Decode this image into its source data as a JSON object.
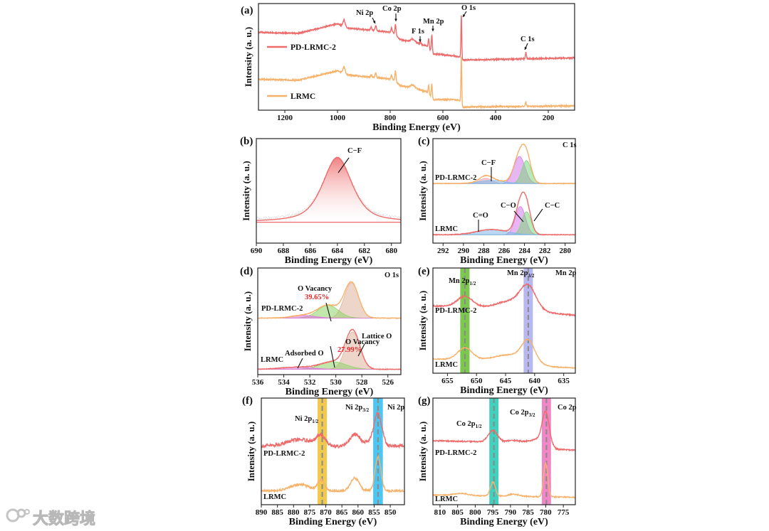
{
  "watermark": {
    "text": "大数跨境"
  },
  "chart_data": [
    {
      "id": "a",
      "tag": "(a)",
      "type": "line",
      "xlabel": "Binding Energy (eV)",
      "ylabel": "Intensity (a. u.)",
      "xlim": [
        1300,
        100
      ],
      "ylim": [
        0,
        1
      ],
      "xticks": [
        1200,
        1000,
        800,
        600,
        400,
        200
      ],
      "series": [
        {
          "name": "PD-LRMC-2",
          "color": "#ee6b6b",
          "noise": 0.006,
          "baseline": [
            [
              1300,
              0.73
            ],
            [
              1150,
              0.72
            ],
            [
              1000,
              0.81
            ],
            [
              960,
              0.77
            ],
            [
              790,
              0.73
            ],
            [
              760,
              0.66
            ],
            [
              700,
              0.63
            ],
            [
              660,
              0.6
            ],
            [
              638,
              0.53
            ],
            [
              560,
              0.51
            ],
            [
              535,
              0.5
            ],
            [
              528,
              0.47
            ],
            [
              100,
              0.49
            ]
          ],
          "peaks": [
            [
              975,
              0.06,
              4
            ],
            [
              855,
              0.05,
              2.5
            ],
            [
              872,
              0.03,
              2.5
            ],
            [
              795,
              0.04,
              2
            ],
            [
              780,
              0.1,
              2
            ],
            [
              715,
              0.03,
              8
            ],
            [
              685,
              0.02,
              2
            ],
            [
              654,
              0.09,
              2
            ],
            [
              642,
              0.16,
              2
            ],
            [
              530,
              0.42,
              1.6
            ],
            [
              285,
              0.06,
              2
            ]
          ]
        },
        {
          "name": "LRMC",
          "color": "#f6b26b",
          "noise": 0.006,
          "baseline": [
            [
              1300,
              0.29
            ],
            [
              1150,
              0.28
            ],
            [
              1000,
              0.37
            ],
            [
              960,
              0.33
            ],
            [
              790,
              0.29
            ],
            [
              760,
              0.23
            ],
            [
              700,
              0.2
            ],
            [
              660,
              0.17
            ],
            [
              638,
              0.1
            ],
            [
              560,
              0.1
            ],
            [
              535,
              0.09
            ],
            [
              528,
              0.03
            ],
            [
              100,
              0.04
            ]
          ],
          "peaks": [
            [
              975,
              0.06,
              4
            ],
            [
              855,
              0.04,
              2.5
            ],
            [
              872,
              0.02,
              2.5
            ],
            [
              795,
              0.04,
              2
            ],
            [
              780,
              0.1,
              2
            ],
            [
              715,
              0.03,
              8
            ],
            [
              654,
              0.08,
              2
            ],
            [
              642,
              0.13,
              2
            ],
            [
              530,
              0.46,
              1.6
            ],
            [
              285,
              0.04,
              2
            ]
          ]
        }
      ],
      "legend": [
        {
          "name": "PD-LRMC-2",
          "color": "#ee6b6b"
        },
        {
          "name": "LRMC",
          "color": "#f6b26b"
        }
      ],
      "labels": [
        {
          "text": "Ni 2p"
        },
        {
          "text": "Co 2p"
        },
        {
          "text": "F 1s"
        },
        {
          "text": "Mn 2p"
        },
        {
          "text": "O 1s"
        },
        {
          "text": "C 1s"
        }
      ]
    },
    {
      "id": "b",
      "tag": "(b)",
      "type": "line",
      "xlabel": "Binding Energy (eV)",
      "ylabel": "Intensity (a. u.)",
      "xlim": [
        690,
        679.3
      ],
      "ylim": [
        0,
        1
      ],
      "xticks": [
        690,
        688,
        686,
        684,
        682,
        680
      ],
      "series": [
        {
          "color": "#c8c8c8",
          "noise": 0.012,
          "dotted": true,
          "baseline": [
            [
              690,
              0.22
            ],
            [
              679.3,
              0.22
            ]
          ],
          "peaks": [
            [
              684,
              0.6,
              1.1,
              0.6
            ]
          ]
        },
        {
          "color": "#ee6b6b",
          "noise": 0,
          "fill": true,
          "baseline": [
            [
              690,
              0.2
            ],
            [
              679.3,
              0.2
            ]
          ],
          "peaks": [
            [
              684,
              0.62,
              1.1,
              0.6
            ]
          ]
        }
      ],
      "labels": [
        {
          "text": "C−F"
        }
      ]
    },
    {
      "id": "c",
      "tag": "(c)",
      "type": "line",
      "xlabel": "Binding Energy (eV)",
      "ylabel": "Intensity (a. u.)",
      "xlim": [
        293,
        279
      ],
      "ylim": [
        0,
        1
      ],
      "xticks": [
        292,
        290,
        288,
        286,
        284,
        282,
        280
      ],
      "series": [
        {
          "name": "PD-LRMC-2",
          "color": "#f6b26b",
          "noise": 0.003,
          "baseline": [
            [
              293,
              0.57
            ],
            [
              279,
              0.57
            ]
          ],
          "peaks": [
            [
              284.5,
              0.26,
              0.55
            ],
            [
              283.8,
              0.22,
              0.45
            ],
            [
              287.8,
              0.05,
              0.6
            ],
            [
              287.2,
              0.03,
              1.2
            ]
          ],
          "components": [
            {
              "name": "C−O",
              "color": "#d27be8",
              "peak": [
                284.5,
                0.26,
                0.55
              ]
            },
            {
              "name": "C−C",
              "color": "#7fd67f",
              "peak": [
                283.8,
                0.22,
                0.45
              ]
            },
            {
              "name": "C−F",
              "color": "#e8a0b0",
              "peak": [
                287.8,
                0.05,
                0.6
              ]
            },
            {
              "name": "C=O",
              "color": "#7fb8ea",
              "peak": [
                287.2,
                0.03,
                1.2
              ]
            }
          ]
        },
        {
          "name": "LRMC",
          "color": "#ee6b6b",
          "noise": 0.003,
          "baseline": [
            [
              293,
              0.08
            ],
            [
              279,
              0.08
            ]
          ],
          "peaks": [
            [
              284.4,
              0.27,
              0.5
            ],
            [
              283.8,
              0.22,
              0.45
            ],
            [
              287.2,
              0.05,
              1.5
            ]
          ],
          "components": [
            {
              "name": "C−O",
              "color": "#d27be8",
              "peak": [
                284.4,
                0.27,
                0.5
              ]
            },
            {
              "name": "C−C",
              "color": "#7fd67f",
              "peak": [
                283.8,
                0.22,
                0.45
              ]
            },
            {
              "name": "C=O",
              "color": "#7fb8ea",
              "peak": [
                287.2,
                0.05,
                1.5
              ]
            }
          ]
        }
      ],
      "labels": [
        {
          "text": "C 1s"
        },
        {
          "text": "PD-LRMC-2"
        },
        {
          "text": "LRMC"
        },
        {
          "text": "C−F"
        },
        {
          "text": "C−O"
        },
        {
          "text": "C−C"
        },
        {
          "text": "C=O"
        }
      ]
    },
    {
      "id": "d",
      "tag": "(d)",
      "type": "line",
      "xlabel": "Binding Energy (eV)",
      "ylabel": "Intensity (a. u.)",
      "xlim": [
        536,
        525
      ],
      "ylim": [
        0,
        1
      ],
      "xticks": [
        536,
        534,
        532,
        530,
        528,
        526
      ],
      "series": [
        {
          "name": "PD-LRMC-2",
          "color": "#f6b26b",
          "noise": 0.003,
          "baseline": [
            [
              536,
              0.53
            ],
            [
              525,
              0.53
            ]
          ],
          "peaks": [
            [
              528.8,
              0.33,
              0.55
            ],
            [
              530.6,
              0.12,
              0.8
            ],
            [
              532.5,
              0.025,
              0.9
            ]
          ],
          "components": [
            {
              "name": "Lattice O",
              "color": "#dfb39e",
              "peak": [
                528.8,
                0.33,
                0.55
              ]
            },
            {
              "name": "O Vacancy",
              "color": "#8fd46a",
              "peak": [
                530.6,
                0.12,
                0.8
              ]
            },
            {
              "name": "Adsorbed O",
              "color": "#e070e0",
              "peak": [
                532.5,
                0.025,
                0.9
              ]
            }
          ]
        },
        {
          "name": "LRMC",
          "color": "#ee6b6b",
          "noise": 0.003,
          "baseline": [
            [
              536,
              0.05
            ],
            [
              525,
              0.05
            ]
          ],
          "peaks": [
            [
              528.7,
              0.35,
              0.55
            ],
            [
              530.2,
              0.07,
              1.0
            ],
            [
              533,
              0.02,
              1.2
            ]
          ],
          "components": [
            {
              "name": "Lattice O",
              "color": "#dfb39e",
              "peak": [
                528.7,
                0.35,
                0.55
              ]
            },
            {
              "name": "O Vacancy",
              "color": "#8fd46a",
              "peak": [
                530.2,
                0.07,
                1.0
              ]
            },
            {
              "name": "Adsorbed O",
              "color": "#e070e0",
              "peak": [
                533,
                0.02,
                1.2
              ]
            }
          ]
        }
      ],
      "labels": [
        {
          "text": "O 1s"
        },
        {
          "text": "O Vacancy"
        },
        {
          "text": "39.65%",
          "color": "#e8262a"
        },
        {
          "text": "PD-LRMC-2"
        },
        {
          "text": "O Vacancy"
        },
        {
          "text": "27.99%",
          "color": "#e8262a"
        },
        {
          "text": "Lattice O"
        },
        {
          "text": "Adsorbed O"
        },
        {
          "text": "LRMC"
        }
      ]
    },
    {
      "id": "e",
      "tag": "(e)",
      "type": "line",
      "xlabel": "Binding Energy (eV)",
      "ylabel": "Intensity (a. u.)",
      "xlim": [
        657.5,
        633
      ],
      "ylim": [
        0,
        1
      ],
      "xticks": [
        655,
        650,
        645,
        640,
        635
      ],
      "bands": [
        {
          "center": 652.0,
          "halfwidth": 0.8,
          "color": "#6ec13a"
        },
        {
          "center": 641.1,
          "halfwidth": 0.8,
          "color": "#b0b0ee"
        }
      ],
      "series": [
        {
          "name": "PD-LRMC-2",
          "color": "#ee6b6b",
          "noise": 0.006,
          "baseline": [
            [
              657.5,
              0.64
            ],
            [
              646,
              0.62
            ],
            [
              637,
              0.57
            ],
            [
              633,
              0.55
            ]
          ],
          "peaks": [
            [
              652.0,
              0.1,
              1.3
            ],
            [
              641.1,
              0.2,
              1.3
            ],
            [
              643.5,
              0.08,
              2.5
            ]
          ]
        },
        {
          "name": "LRMC",
          "color": "#f6b26b",
          "noise": 0.004,
          "baseline": [
            [
              657.5,
              0.135
            ],
            [
              646,
              0.13
            ],
            [
              637,
              0.06
            ],
            [
              633,
              0.05
            ]
          ],
          "peaks": [
            [
              652.0,
              0.11,
              1.2
            ],
            [
              641.1,
              0.19,
              1.1
            ],
            [
              643.5,
              0.06,
              2.5
            ]
          ]
        }
      ],
      "labels": [
        {
          "text": "Mn 2p",
          "sub": "1/2"
        },
        {
          "text": "Mn 2p",
          "sub": "3/2"
        },
        {
          "text": "Mn 2p"
        },
        {
          "text": "PD-LRMC-2"
        },
        {
          "text": "LRMC"
        }
      ]
    },
    {
      "id": "f",
      "tag": "(f)",
      "type": "line",
      "xlabel": "Binding Energy (eV)",
      "ylabel": "Intensity (a. u.)",
      "xlim": [
        890,
        845.6
      ],
      "ylim": [
        0,
        1
      ],
      "xticks": [
        890,
        885,
        880,
        875,
        870,
        865,
        860,
        855,
        850
      ],
      "bands": [
        {
          "center": 871.1,
          "halfwidth": 1.45,
          "color": "#f0c33c"
        },
        {
          "center": 853.8,
          "halfwidth": 1.5,
          "color": "#3cc0f0"
        }
      ],
      "series": [
        {
          "name": "PD-LRMC-2",
          "color": "#ee6b6b",
          "noise": 0.016,
          "baseline": [
            [
              890,
              0.55
            ],
            [
              845.6,
              0.55
            ]
          ],
          "peaks": [
            [
              878,
              0.06,
              4
            ],
            [
              871.5,
              0.09,
              1.3
            ],
            [
              861,
              0.11,
              1.5
            ],
            [
              853.8,
              0.28,
              1.2
            ],
            [
              856,
              0.04,
              2
            ]
          ]
        },
        {
          "name": "LRMC",
          "color": "#f6b26b",
          "noise": 0.01,
          "baseline": [
            [
              890,
              0.13
            ],
            [
              845.6,
              0.13
            ]
          ],
          "peaks": [
            [
              878,
              0.06,
              3
            ],
            [
              871.5,
              0.1,
              1.0
            ],
            [
              861,
              0.12,
              1.3
            ],
            [
              853.8,
              0.32,
              0.9
            ]
          ]
        }
      ],
      "labels": [
        {
          "text": "Ni 2p",
          "sub": "1/2"
        },
        {
          "text": "Ni 2p",
          "sub": "3/2"
        },
        {
          "text": "Ni 2p"
        },
        {
          "text": "PD-LRMC-2"
        },
        {
          "text": "LRMC"
        }
      ]
    },
    {
      "id": "g",
      "tag": "(g)",
      "type": "line",
      "xlabel": "Binding Energy (eV)",
      "ylabel": "Intensity (a. u.)",
      "xlim": [
        812,
        771.6
      ],
      "ylim": [
        0,
        1
      ],
      "xticks": [
        810,
        805,
        800,
        795,
        790,
        785,
        780,
        775
      ],
      "bands": [
        {
          "center": 794.7,
          "halfwidth": 1.3,
          "color": "#2ecbb8"
        },
        {
          "center": 779.8,
          "halfwidth": 1.3,
          "color": "#f07ac0"
        }
      ],
      "series": [
        {
          "name": "PD-LRMC-2",
          "color": "#ee6b6b",
          "noise": 0.006,
          "baseline": [
            [
              812,
              0.6
            ],
            [
              785,
              0.58
            ],
            [
              777,
              0.52
            ],
            [
              771.6,
              0.51
            ]
          ],
          "peaks": [
            [
              795,
              0.11,
              1.3
            ],
            [
              789,
              0.02,
              2
            ],
            [
              780,
              0.3,
              1.0
            ],
            [
              782,
              0.05,
              2
            ]
          ]
        },
        {
          "name": "LRMC",
          "color": "#f6b26b",
          "noise": 0.005,
          "baseline": [
            [
              812,
              0.09
            ],
            [
              771.6,
              0.07
            ]
          ],
          "peaks": [
            [
              804,
              0.02,
              2
            ],
            [
              795,
              0.13,
              0.7
            ],
            [
              789,
              0.02,
              1.5
            ],
            [
              780,
              0.31,
              0.6
            ]
          ]
        }
      ],
      "labels": [
        {
          "text": "Co 2p",
          "sub": "1/2"
        },
        {
          "text": "Co 2p",
          "sub": "3/2"
        },
        {
          "text": "Co 2p"
        },
        {
          "text": "PD-LRMC-2"
        },
        {
          "text": "LRMC"
        }
      ]
    }
  ]
}
